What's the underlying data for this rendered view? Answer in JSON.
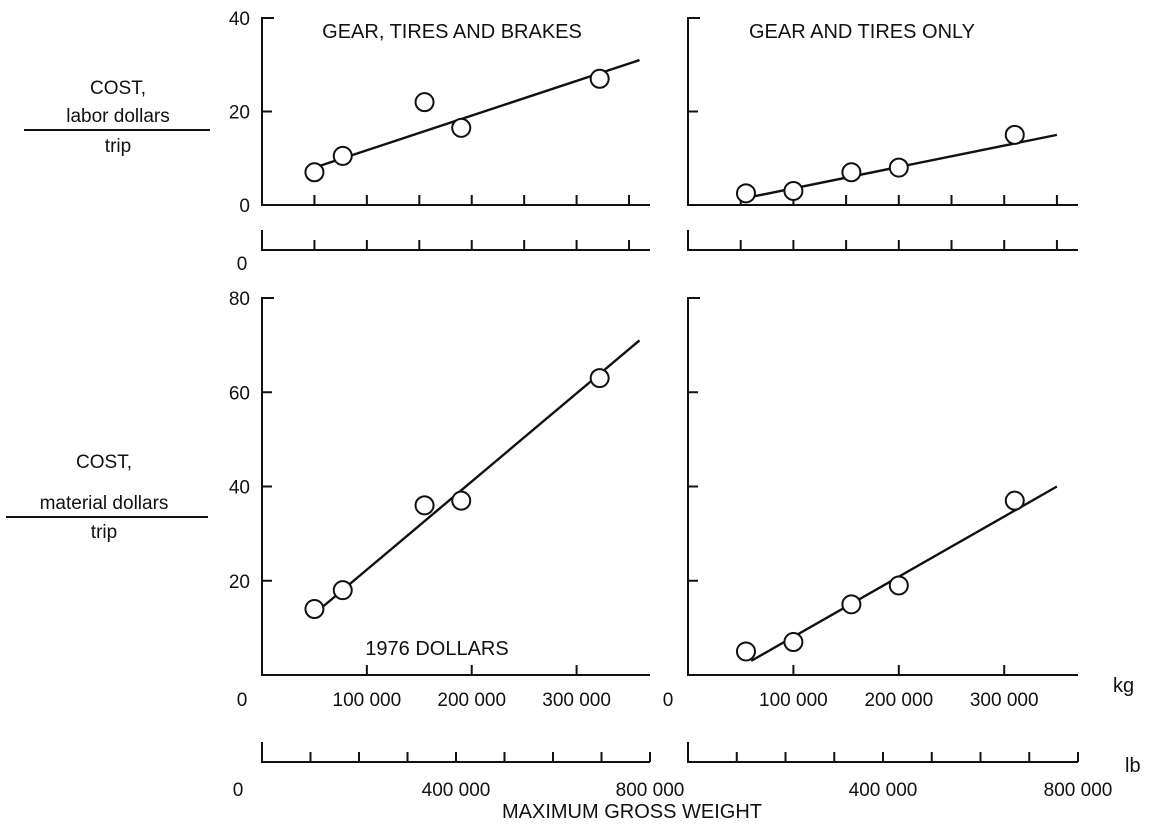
{
  "figure": {
    "xlabel": "MAXIMUM GROSS WEIGHT",
    "kg_unit": "kg",
    "lb_unit": "lb",
    "lb_zero": "0"
  },
  "y_titles": {
    "labor": {
      "line1": "COST,",
      "num": "labor dollars",
      "den": "trip"
    },
    "material": {
      "line1": "COST,",
      "num": "material dollars",
      "den": "trip"
    }
  },
  "chart_data": [
    {
      "id": "labor-gear-tires-brakes",
      "type": "scatter",
      "title": "GEAR, TIRES AND BRAKES",
      "xlabel": "MAXIMUM GROSS WEIGHT",
      "ylabel": "COST, labor dollars/trip",
      "x_unit": "kg",
      "xlim": [
        0,
        370000
      ],
      "ylim": [
        0,
        40
      ],
      "y_ticks": [
        0,
        20,
        40
      ],
      "x_ticks": [
        50000,
        100000,
        150000,
        200000,
        250000,
        300000,
        350000
      ],
      "x_tick_labels": [],
      "points": [
        {
          "x": 50000,
          "y": 7
        },
        {
          "x": 77000,
          "y": 10.5
        },
        {
          "x": 155000,
          "y": 22
        },
        {
          "x": 190000,
          "y": 16.5
        },
        {
          "x": 322000,
          "y": 27
        }
      ],
      "fit_line": {
        "x": [
          50000,
          360000
        ],
        "y": [
          8,
          31
        ]
      },
      "annotation": ""
    },
    {
      "id": "labor-gear-tires-only",
      "type": "scatter",
      "title": "GEAR AND TIRES ONLY",
      "xlabel": "MAXIMUM GROSS WEIGHT",
      "ylabel": "COST, labor dollars/trip",
      "x_unit": "kg",
      "xlim": [
        0,
        370000
      ],
      "ylim": [
        0,
        40
      ],
      "y_ticks": [
        0,
        20,
        40
      ],
      "x_ticks": [
        50000,
        100000,
        150000,
        200000,
        250000,
        300000,
        350000
      ],
      "x_tick_labels": [],
      "points": [
        {
          "x": 55000,
          "y": 2.5
        },
        {
          "x": 100000,
          "y": 3
        },
        {
          "x": 155000,
          "y": 7
        },
        {
          "x": 200000,
          "y": 8
        },
        {
          "x": 310000,
          "y": 15
        }
      ],
      "fit_line": {
        "x": [
          55000,
          350000
        ],
        "y": [
          1.5,
          15
        ]
      },
      "annotation": ""
    },
    {
      "id": "material-gear-tires-brakes",
      "type": "scatter",
      "title": "",
      "xlabel": "MAXIMUM GROSS WEIGHT",
      "ylabel": "COST, material dollars/trip",
      "x_unit": "kg",
      "xlim": [
        0,
        370000
      ],
      "ylim": [
        0,
        80
      ],
      "y_ticks": [
        20,
        40,
        60,
        80
      ],
      "x_ticks": [
        100000,
        200000,
        300000
      ],
      "x_tick_labels": [
        "0",
        "100 000",
        "200 000",
        "300 000"
      ],
      "lb_axis": {
        "lim": [
          0,
          800000
        ],
        "ticks": [
          0,
          100000,
          200000,
          300000,
          400000,
          500000,
          600000,
          700000,
          800000
        ],
        "tick_labels": [
          "400 000",
          "800 000"
        ]
      },
      "points": [
        {
          "x": 50000,
          "y": 14
        },
        {
          "x": 77000,
          "y": 18
        },
        {
          "x": 155000,
          "y": 36
        },
        {
          "x": 190000,
          "y": 37
        },
        {
          "x": 322000,
          "y": 63
        }
      ],
      "fit_line": {
        "x": [
          50000,
          360000
        ],
        "y": [
          13,
          71
        ]
      },
      "annotation": "1976 DOLLARS"
    },
    {
      "id": "material-gear-tires-only",
      "type": "scatter",
      "title": "",
      "xlabel": "MAXIMUM GROSS WEIGHT",
      "ylabel": "COST, material dollars/trip",
      "x_unit": "kg",
      "xlim": [
        0,
        370000
      ],
      "ylim": [
        0,
        80
      ],
      "y_ticks": [
        20,
        40,
        60,
        80
      ],
      "x_ticks": [
        100000,
        200000,
        300000
      ],
      "x_tick_labels": [
        "0",
        "100 000",
        "200 000",
        "300 000"
      ],
      "lb_axis": {
        "lim": [
          0,
          800000
        ],
        "ticks": [
          0,
          100000,
          200000,
          300000,
          400000,
          500000,
          600000,
          700000,
          800000
        ],
        "tick_labels": [
          "400 000",
          "800 000"
        ]
      },
      "points": [
        {
          "x": 55000,
          "y": 5
        },
        {
          "x": 100000,
          "y": 7
        },
        {
          "x": 155000,
          "y": 15
        },
        {
          "x": 200000,
          "y": 19
        },
        {
          "x": 310000,
          "y": 37
        }
      ],
      "fit_line": {
        "x": [
          60000,
          350000
        ],
        "y": [
          3,
          40
        ]
      },
      "annotation": ""
    }
  ]
}
